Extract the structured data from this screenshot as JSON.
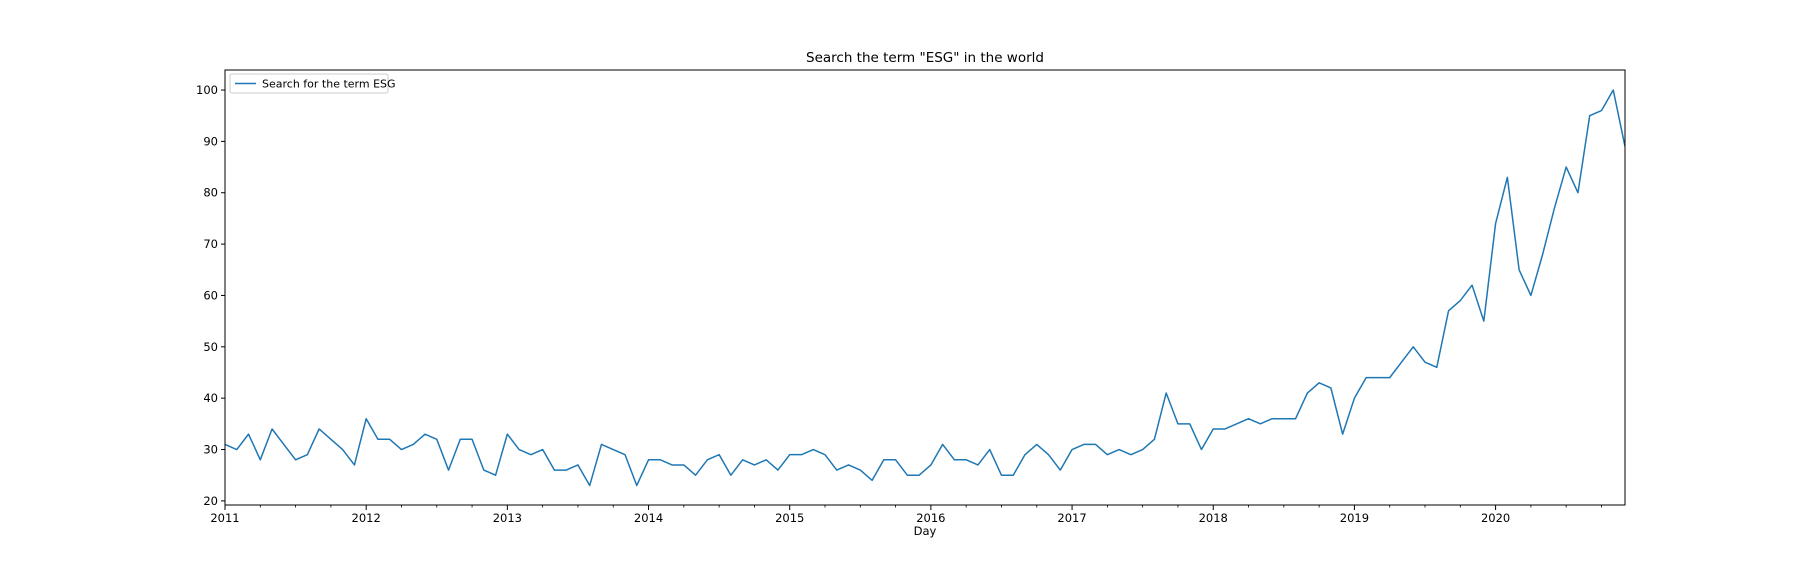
{
  "chart_data": {
    "type": "line",
    "title": "Search the term \"ESG\" in the world",
    "xlabel": "Day",
    "ylabel": "",
    "x_start": "2011-01",
    "x_frequency": "monthly",
    "xlim": [
      "2011-01",
      "2020-12"
    ],
    "ylim": [
      19.2,
      103.9
    ],
    "yticks": [
      20,
      30,
      40,
      50,
      60,
      70,
      80,
      90,
      100
    ],
    "xticks": [
      {
        "date": "2011-01",
        "label": "2011"
      },
      {
        "date": "2012-01",
        "label": "2012"
      },
      {
        "date": "2013-01",
        "label": "2013"
      },
      {
        "date": "2014-01",
        "label": "2014"
      },
      {
        "date": "2015-01",
        "label": "2015"
      },
      {
        "date": "2016-01",
        "label": "2016"
      },
      {
        "date": "2017-01",
        "label": "2017"
      },
      {
        "date": "2018-01",
        "label": "2018"
      },
      {
        "date": "2019-01",
        "label": "2019"
      },
      {
        "date": "2020-01",
        "label": "2020"
      }
    ],
    "grid": false,
    "legend_position": "top-left",
    "series": [
      {
        "name": "Search for the term ESG",
        "color": "#1f77b4",
        "values": [
          31,
          30,
          33,
          28,
          34,
          31,
          28,
          29,
          34,
          32,
          30,
          27,
          36,
          32,
          32,
          30,
          31,
          33,
          32,
          26,
          32,
          32,
          26,
          25,
          33,
          30,
          29,
          30,
          26,
          26,
          27,
          23,
          31,
          30,
          29,
          23,
          28,
          28,
          27,
          27,
          25,
          28,
          29,
          25,
          28,
          27,
          28,
          26,
          29,
          29,
          30,
          29,
          26,
          27,
          26,
          24,
          28,
          28,
          25,
          25,
          27,
          31,
          28,
          28,
          27,
          30,
          25,
          25,
          29,
          31,
          29,
          26,
          30,
          31,
          31,
          29,
          30,
          29,
          30,
          32,
          41,
          35,
          35,
          30,
          34,
          34,
          35,
          36,
          35,
          36,
          36,
          36,
          41,
          43,
          42,
          33,
          40,
          44,
          44,
          44,
          47,
          50,
          47,
          46,
          57,
          59,
          62,
          55,
          74,
          83,
          65,
          60,
          68,
          77,
          85,
          80,
          95,
          96,
          100,
          89
        ]
      }
    ]
  }
}
